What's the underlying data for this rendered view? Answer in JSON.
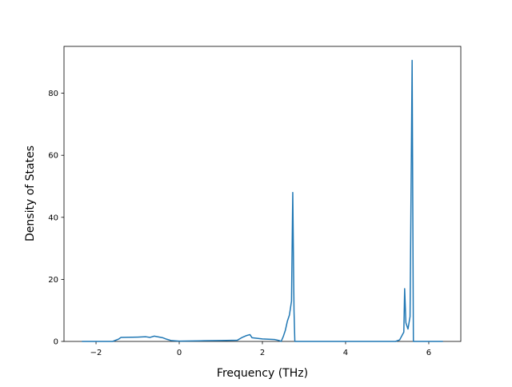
{
  "chart_data": {
    "type": "line",
    "xlabel": "Frequency (THz)",
    "ylabel": "Density of States",
    "x": [
      -2.34,
      -1.6,
      -1.45,
      -1.4,
      -1.0,
      -0.8,
      -0.7,
      -0.6,
      -0.4,
      -0.3,
      -0.2,
      0,
      0.5,
      1.0,
      1.4,
      1.5,
      1.6,
      1.7,
      1.75,
      2.0,
      2.3,
      2.4,
      2.45,
      2.5,
      2.55,
      2.6,
      2.65,
      2.7,
      2.73,
      2.76,
      2.78,
      3.0,
      5.2,
      5.3,
      5.4,
      5.42,
      5.45,
      5.5,
      5.55,
      5.6,
      5.63,
      6.34
    ],
    "y": [
      0,
      0,
      0.8,
      1.3,
      1.4,
      1.5,
      1.3,
      1.7,
      1.2,
      0.7,
      0.3,
      0.1,
      0.2,
      0.3,
      0.4,
      1.2,
      1.8,
      2.2,
      1.2,
      0.8,
      0.6,
      0.3,
      0,
      1.5,
      3.5,
      6.5,
      8.5,
      13,
      48,
      10,
      0,
      0,
      0,
      0.5,
      3,
      17,
      6,
      4,
      8,
      90.6,
      0,
      0
    ],
    "color": "#1f77b4",
    "xlim": [
      -2.77,
      6.77
    ],
    "xticks": [
      {
        "value": -2,
        "label": "−2"
      },
      0,
      2,
      4,
      6
    ],
    "ylim": [
      0,
      95.1
    ],
    "yticks": [
      0,
      20,
      40,
      60,
      80
    ]
  }
}
